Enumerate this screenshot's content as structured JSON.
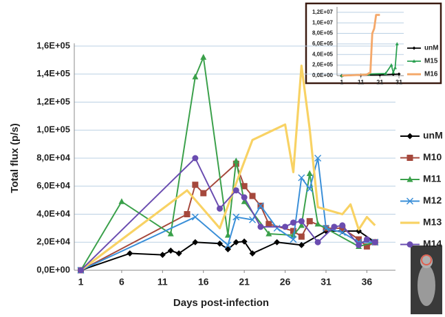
{
  "chart_data": [
    {
      "type": "line",
      "y_label": "Total flux (p/s)",
      "x_label": "Days post-infection",
      "xlim": [
        0.2,
        39.5
      ],
      "xticks": [
        1,
        6,
        11,
        16,
        21,
        26,
        31,
        36
      ],
      "ylim": [
        0,
        160000
      ],
      "yscale": "linear",
      "yticks": [
        {
          "value": 0,
          "label": "0,0E+00"
        },
        {
          "value": 20000,
          "label": "2,0E+04"
        },
        {
          "value": 40000,
          "label": "4,0E+04"
        },
        {
          "value": 60000,
          "label": "6,0E+04"
        },
        {
          "value": 80000,
          "label": "8,0E+04"
        },
        {
          "value": 100000,
          "label": "1,0E+05"
        },
        {
          "value": 120000,
          "label": "1,2E+05"
        },
        {
          "value": 140000,
          "label": "1,4E+05"
        },
        {
          "value": 160000,
          "label": "1,6E+05"
        }
      ],
      "grid": true,
      "legend": "right",
      "series": [
        {
          "name": "unM",
          "color": "#000000",
          "marker": "diamond",
          "x": [
            1,
            7,
            11,
            12,
            13,
            15,
            18,
            19,
            20,
            21,
            22,
            25,
            28,
            31,
            33,
            35,
            37
          ],
          "values": [
            0,
            12000,
            11000,
            14000,
            12000,
            20000,
            19000,
            15000,
            20000,
            20500,
            12000,
            20000,
            18000,
            28000,
            28000,
            28000,
            20000
          ]
        },
        {
          "name": "M10",
          "color": "#a5483c",
          "marker": "square",
          "x": [
            1,
            14,
            15,
            16,
            20,
            21,
            22,
            23,
            24,
            27,
            28,
            29,
            31,
            33,
            35,
            36,
            37
          ],
          "values": [
            0,
            40000,
            61000,
            55000,
            76000,
            60000,
            53000,
            46000,
            33000,
            28000,
            24000,
            35000,
            30000,
            30000,
            22000,
            17000,
            20000
          ]
        },
        {
          "name": "M11",
          "color": "#3aa04a",
          "marker": "triangle",
          "x": [
            1,
            6,
            12,
            15,
            16,
            19,
            20,
            21,
            24,
            27,
            28,
            29,
            30,
            35,
            37
          ],
          "values": [
            0,
            49000,
            26000,
            138000,
            152000,
            25000,
            78000,
            49000,
            26000,
            25000,
            32000,
            69000,
            33000,
            17000,
            20000
          ]
        },
        {
          "name": "M12",
          "color": "#3a8fd8",
          "marker": "x",
          "x": [
            1,
            15,
            19,
            20,
            22,
            23,
            25,
            27,
            28,
            29,
            30,
            31,
            33,
            35,
            37
          ],
          "values": [
            0,
            38000,
            18000,
            38000,
            36000,
            46000,
            30000,
            22000,
            66000,
            58000,
            80000,
            30000,
            27000,
            20000,
            20000
          ]
        },
        {
          "name": "M13",
          "color": "#f8d264",
          "marker": "none",
          "x": [
            1,
            14,
            18,
            20,
            22,
            26,
            27,
            28,
            29,
            30,
            33,
            34,
            35,
            36,
            37
          ],
          "values": [
            0,
            57000,
            30000,
            62000,
            93000,
            104000,
            70000,
            146000,
            101000,
            45000,
            40000,
            47000,
            29000,
            38000,
            32000
          ]
        },
        {
          "name": "M14",
          "color": "#6a4cb0",
          "marker": "circle",
          "x": [
            1,
            15,
            18,
            20,
            21,
            23,
            26,
            27,
            28,
            30,
            32,
            33,
            35,
            36,
            37
          ],
          "values": [
            0,
            80000,
            44000,
            57000,
            52000,
            31000,
            31000,
            34000,
            35000,
            20000,
            31000,
            32000,
            18000,
            22000,
            20000
          ]
        }
      ]
    },
    {
      "type": "line",
      "xlim": [
        -1.5,
        33.5
      ],
      "xticks": [
        1,
        11,
        21,
        31
      ],
      "ylim": [
        0,
        12500000
      ],
      "yscale": "broken",
      "yticks": [
        {
          "value": 0,
          "label": "0,0E+00"
        },
        {
          "value": 200000,
          "label": "2,0E+05"
        },
        {
          "value": 400000,
          "label": "4,0E+05"
        },
        {
          "value": 600000,
          "label": "6,0E+05"
        },
        {
          "value": 800000,
          "label": "8,0E+05"
        },
        {
          "value": 10000000,
          "label": "1,0E+07"
        },
        {
          "value": 12000000,
          "label": "1,2E+07"
        }
      ],
      "grid": true,
      "legend": "right",
      "series": [
        {
          "name": "unM",
          "color": "#000000",
          "marker": "diamond",
          "x": [
            1,
            11,
            21,
            28,
            31
          ],
          "values": [
            0,
            10000,
            15000,
            25000,
            30000
          ]
        },
        {
          "name": "M15",
          "color": "#2aa050",
          "marker": "triangle",
          "x": [
            1,
            15,
            24,
            27,
            28,
            29,
            30
          ],
          "values": [
            0,
            30000,
            40000,
            200000,
            60000,
            150000,
            600000
          ]
        },
        {
          "name": "M16",
          "color": "#f4a86a",
          "marker": "none",
          "x": [
            1,
            14,
            16,
            17,
            18,
            19,
            21
          ],
          "values": [
            0,
            20000,
            60000,
            800000,
            5000000,
            11500000,
            11500000
          ]
        }
      ]
    }
  ]
}
